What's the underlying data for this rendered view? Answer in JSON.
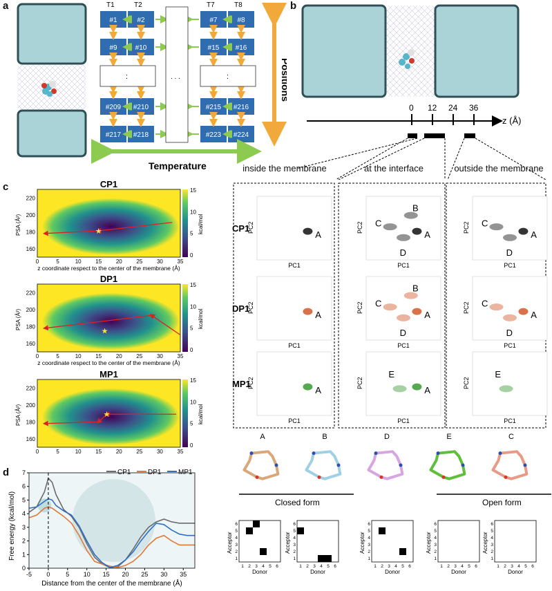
{
  "panels": {
    "a": "a",
    "b": "b",
    "c": "c",
    "d": "d"
  },
  "grid": {
    "col_headers": [
      "T1",
      "T2",
      "T7",
      "T8"
    ],
    "rows": [
      [
        "#1",
        "#2",
        "#7",
        "#8"
      ],
      [
        "#9",
        "#10",
        "#15",
        "#16"
      ],
      [
        "#209",
        "#210",
        "#215",
        "#216"
      ],
      [
        "#217",
        "#218",
        "#223",
        "#224"
      ]
    ],
    "dots_v": ":",
    "dots_h": ". . .",
    "positions_label": "Positions",
    "temperature_label": "Temperature"
  },
  "axis_b": {
    "ticks": [
      "0",
      "12",
      "24",
      "36"
    ],
    "label": "z (Å)"
  },
  "regions": [
    "inside the membrane",
    "at the interface",
    "outside the membrane"
  ],
  "maps": [
    {
      "title": "CP1",
      "ylabel": "PSA (Å²)",
      "xlabel": "z coordinate respect to the center of the membrane (Å)",
      "cbar_label": "kcal/mol",
      "cbar_ticks": [
        "15",
        "10",
        "5",
        "0"
      ],
      "yticks": [
        "220",
        "200",
        "180",
        "160"
      ],
      "xticks": [
        "0",
        "5",
        "10",
        "15",
        "20",
        "25",
        "30",
        "35"
      ]
    },
    {
      "title": "DP1",
      "ylabel": "PSA (Å²)",
      "xlabel": "z coordinate respect to the center of the membrane (Å)",
      "cbar_label": "kcal/mol",
      "cbar_ticks": [
        "15",
        "10",
        "5",
        "0"
      ],
      "yticks": [
        "220",
        "200",
        "180",
        "160"
      ],
      "xticks": [
        "0",
        "5",
        "10",
        "15",
        "20",
        "25",
        "30",
        "35"
      ]
    },
    {
      "title": "MP1",
      "ylabel": "PSA (Å²)",
      "xlabel": "z coordinate respect to the center of the membrane (Å)",
      "cbar_label": "kcal/mol",
      "cbar_ticks": [
        "15",
        "10",
        "5",
        "0"
      ],
      "yticks": [
        "220",
        "200",
        "180",
        "160"
      ],
      "xticks": [
        "0",
        "5",
        "10",
        "15",
        "20",
        "25",
        "30",
        "35"
      ]
    }
  ],
  "pca": {
    "rows": [
      "CP1",
      "DP1",
      "MP1"
    ],
    "xlabel": "PC1",
    "ylabel": "PC2",
    "colors": [
      "#111111",
      "#d2582b",
      "#3a9a32"
    ],
    "labels": [
      [
        [
          "A"
        ],
        [
          "B",
          "C",
          "A",
          "D"
        ],
        [
          "C",
          "A",
          "D"
        ]
      ],
      [
        [
          "A"
        ],
        [
          "B",
          "C",
          "A",
          "D"
        ],
        [
          "C",
          "A",
          "D"
        ]
      ],
      [
        [
          "A"
        ],
        [
          "E",
          "A"
        ],
        [
          "E"
        ]
      ]
    ]
  },
  "structures": {
    "labels": [
      "A",
      "B",
      "D",
      "E",
      "C"
    ],
    "colors": [
      "#d9a77a",
      "#9fd0e3",
      "#d7a6e0",
      "#5fbf3a",
      "#e89a86"
    ],
    "closed_form": "Closed form",
    "open_form": "Open form"
  },
  "hbond": {
    "xlabel": "Donor",
    "ylabel": "Acceptor",
    "ticks": [
      "1",
      "2",
      "3",
      "4",
      "5",
      "6"
    ],
    "matrices": [
      [
        [
          1,
          5
        ],
        [
          2,
          6
        ],
        [
          3,
          2
        ]
      ],
      [
        [
          0,
          5
        ],
        [
          3,
          1
        ],
        [
          4,
          1
        ]
      ],
      [
        [
          1,
          5
        ],
        [
          4,
          2
        ]
      ],
      [],
      []
    ]
  },
  "chart_data": {
    "type": "line",
    "xlabel": "Distance from the center of the membrane (Å)",
    "ylabel": "Free energy (kcal/mol)",
    "xlim": [
      -5,
      38
    ],
    "ylim": [
      0,
      7
    ],
    "xticks": [
      "-5",
      "0",
      "5",
      "10",
      "15",
      "20",
      "25",
      "30",
      "35"
    ],
    "yticks": [
      "0",
      "1",
      "2",
      "3",
      "4",
      "5",
      "6",
      "7"
    ],
    "legend": "top-right",
    "series": [
      {
        "name": "CP1",
        "color": "#6b6b6b",
        "x": [
          -5,
          -3,
          -1,
          0,
          1,
          2,
          4,
          6,
          8,
          10,
          12,
          14,
          16,
          18,
          20,
          22,
          24,
          26,
          28,
          30,
          32,
          34,
          36,
          38
        ],
        "y": [
          4.1,
          4.5,
          5.6,
          6.6,
          6.3,
          5.4,
          4.3,
          3.8,
          3.0,
          1.8,
          0.8,
          0.3,
          0.05,
          0.1,
          0.6,
          1.4,
          2.3,
          3.0,
          3.4,
          3.6,
          3.4,
          3.3,
          3.3,
          3.3
        ]
      },
      {
        "name": "DP1",
        "color": "#e07a3a",
        "x": [
          -5,
          -3,
          -1,
          0,
          1,
          2,
          4,
          6,
          8,
          10,
          12,
          14,
          16,
          18,
          20,
          22,
          24,
          26,
          28,
          30,
          32,
          34,
          36,
          38
        ],
        "y": [
          3.7,
          3.9,
          4.4,
          4.5,
          4.4,
          4.2,
          3.8,
          3.3,
          2.4,
          1.3,
          0.5,
          0.3,
          0.15,
          0.05,
          0.2,
          0.5,
          1.0,
          1.7,
          2.2,
          2.4,
          2.0,
          1.7,
          1.7,
          1.7
        ]
      },
      {
        "name": "MP1",
        "color": "#2e6fc4",
        "x": [
          -5,
          -3,
          -1,
          0,
          1,
          2,
          4,
          6,
          8,
          10,
          12,
          14,
          16,
          18,
          20,
          22,
          24,
          26,
          28,
          30,
          32,
          34,
          36,
          38
        ],
        "y": [
          4.4,
          4.5,
          4.9,
          5.1,
          5.0,
          4.6,
          4.2,
          3.9,
          3.1,
          2.0,
          1.0,
          0.4,
          0.05,
          0.2,
          0.6,
          1.2,
          2.0,
          2.7,
          3.3,
          3.2,
          2.8,
          2.5,
          2.4,
          2.4
        ]
      }
    ]
  }
}
